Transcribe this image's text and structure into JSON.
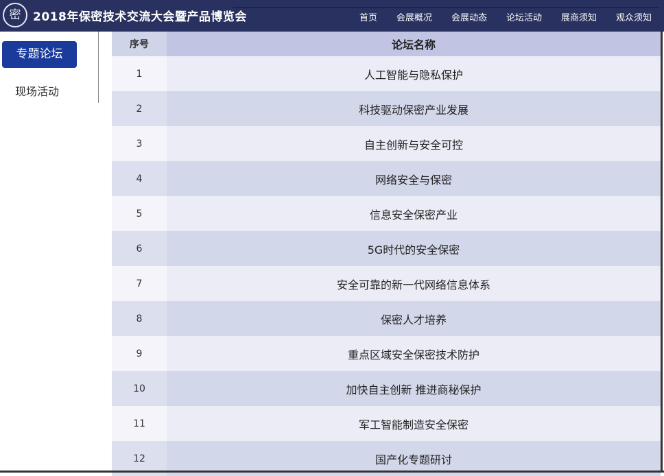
{
  "header": {
    "logo_text": "密",
    "title": "2018年保密技术交流大会暨产品博览会",
    "nav": [
      "首页",
      "会展概况",
      "会展动态",
      "论坛活动",
      "展商须知",
      "观众须知"
    ]
  },
  "sidebar": {
    "items": [
      {
        "label": "专题论坛",
        "active": true
      },
      {
        "label": "现场活动",
        "active": false
      }
    ]
  },
  "table": {
    "headers": [
      "序号",
      "论坛名称"
    ],
    "rows": [
      [
        "1",
        "人工智能与隐私保护"
      ],
      [
        "2",
        "科技驱动保密产业发展"
      ],
      [
        "3",
        "自主创新与安全可控"
      ],
      [
        "4",
        "网络安全与保密"
      ],
      [
        "5",
        "信息安全保密产业"
      ],
      [
        "6",
        "5G时代的安全保密"
      ],
      [
        "7",
        "安全可靠的新一代网络信息体系"
      ],
      [
        "8",
        "保密人才培养"
      ],
      [
        "9",
        "重点区域安全保密技术防护"
      ],
      [
        "10",
        "加快自主创新 推进商秘保护"
      ],
      [
        "11",
        "军工智能制造安全保密"
      ],
      [
        "12",
        "国产化专题研讨"
      ]
    ]
  },
  "colors": {
    "header_bg": "#28315f",
    "active_tab": "#1a3a9c",
    "table_header": "#c1c5e3"
  }
}
